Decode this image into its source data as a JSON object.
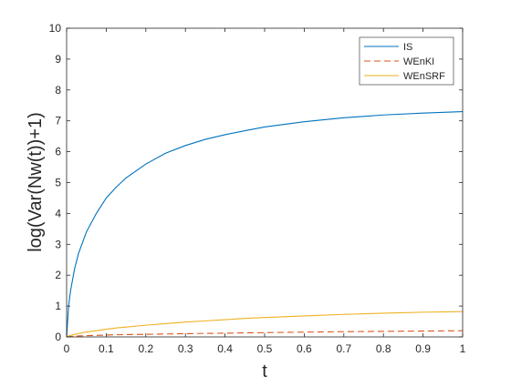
{
  "chart_data": {
    "type": "line",
    "title": "",
    "xlabel": "t",
    "ylabel": "log(Var(Nw(t))+1)",
    "xlim": [
      0,
      1
    ],
    "ylim": [
      0,
      10
    ],
    "xticks": [
      "0",
      "0.1",
      "0.2",
      "0.3",
      "0.4",
      "0.5",
      "0.6",
      "0.7",
      "0.8",
      "0.9",
      "1"
    ],
    "yticks": [
      "0",
      "1",
      "2",
      "3",
      "4",
      "5",
      "6",
      "7",
      "8",
      "9",
      "10"
    ],
    "grid": false,
    "legend_position": "top-right",
    "x": [
      0,
      0.005,
      0.01,
      0.02,
      0.03,
      0.05,
      0.075,
      0.1,
      0.125,
      0.15,
      0.2,
      0.25,
      0.3,
      0.35,
      0.4,
      0.45,
      0.5,
      0.6,
      0.7,
      0.8,
      0.9,
      1.0
    ],
    "series": [
      {
        "name": "IS",
        "color": "#0072BD",
        "dash": "solid",
        "values": [
          0,
          1.0,
          1.5,
          2.2,
          2.7,
          3.4,
          4.0,
          4.5,
          4.85,
          5.15,
          5.6,
          5.95,
          6.2,
          6.4,
          6.55,
          6.68,
          6.8,
          6.97,
          7.1,
          7.19,
          7.25,
          7.3
        ]
      },
      {
        "name": "WEnKI",
        "color": "#D95319",
        "dash": "dashed",
        "values": [
          0,
          0.01,
          0.015,
          0.02,
          0.03,
          0.04,
          0.05,
          0.06,
          0.07,
          0.075,
          0.085,
          0.095,
          0.105,
          0.115,
          0.12,
          0.13,
          0.14,
          0.155,
          0.17,
          0.18,
          0.19,
          0.2
        ]
      },
      {
        "name": "WEnSRF",
        "color": "#EDB120",
        "dash": "solid",
        "values": [
          0,
          0.03,
          0.05,
          0.08,
          0.11,
          0.16,
          0.2,
          0.25,
          0.29,
          0.32,
          0.38,
          0.43,
          0.48,
          0.52,
          0.56,
          0.6,
          0.63,
          0.68,
          0.73,
          0.77,
          0.8,
          0.82
        ]
      }
    ]
  }
}
